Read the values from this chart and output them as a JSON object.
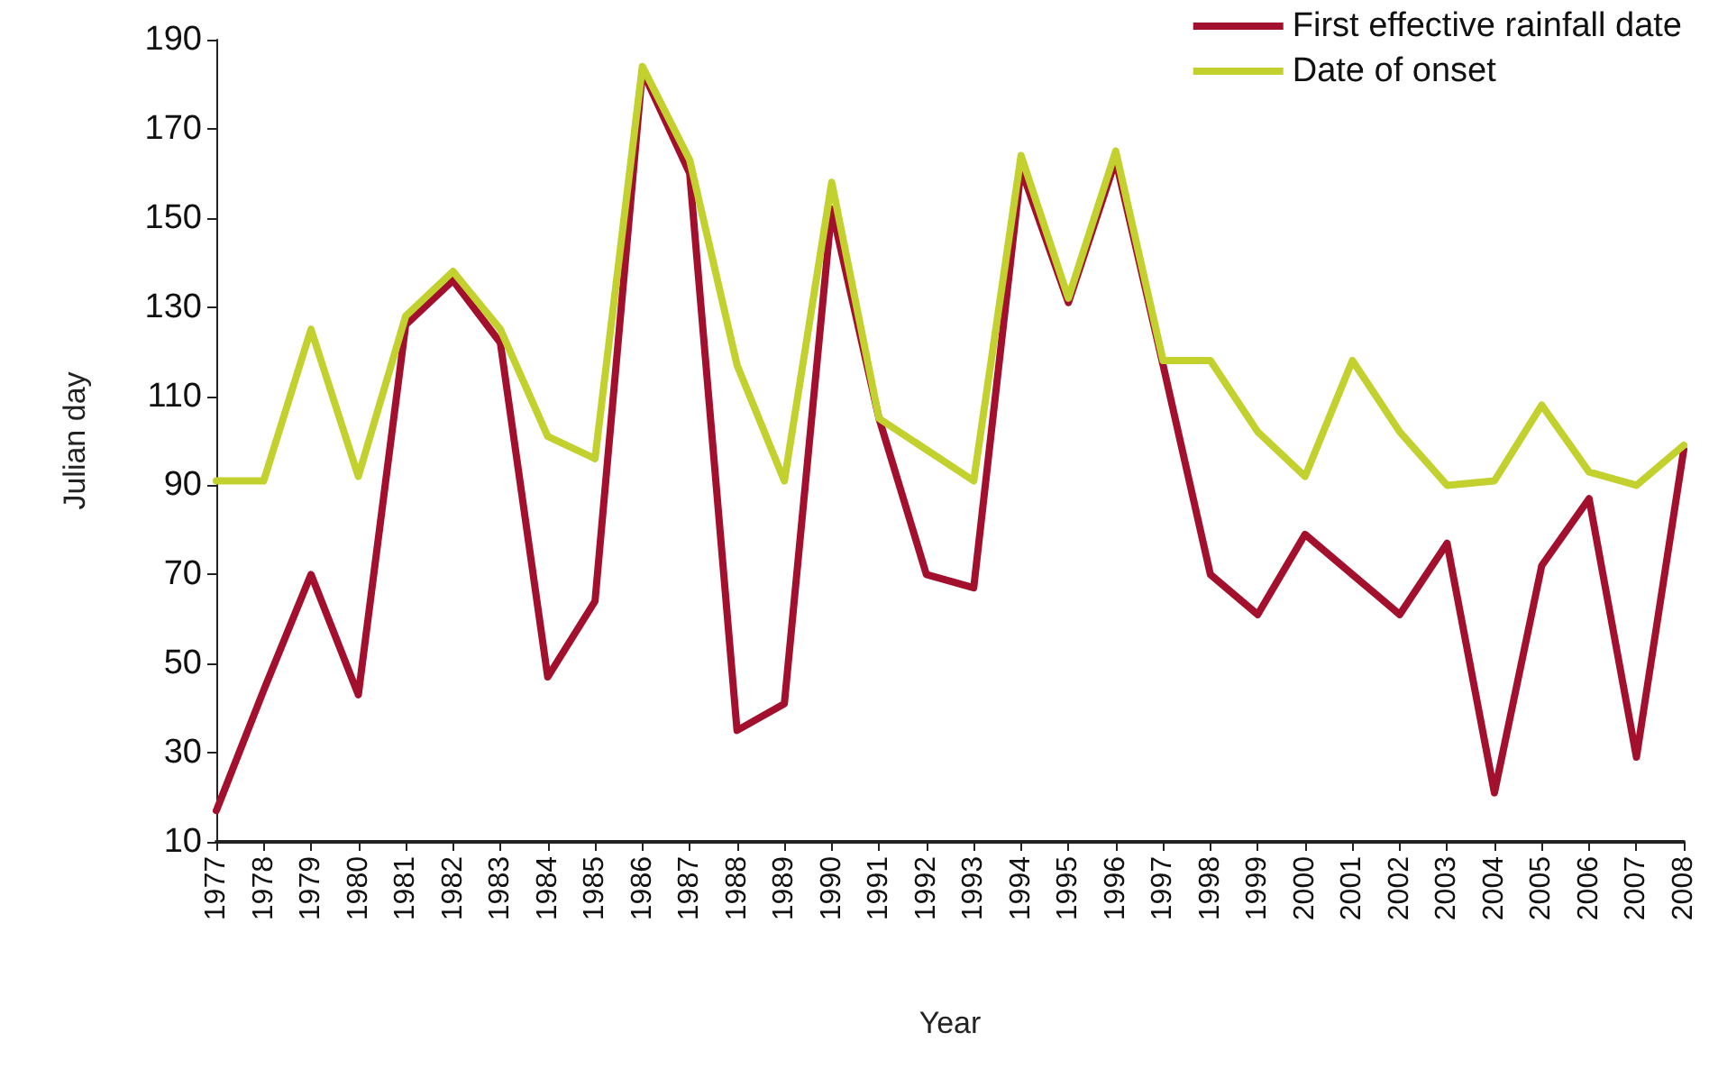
{
  "chart_data": {
    "type": "line",
    "xlabel": "Year",
    "ylabel": "Julian day",
    "categories": [
      "1977",
      "1978",
      "1979",
      "1980",
      "1981",
      "1982",
      "1983",
      "1984",
      "1985",
      "1986",
      "1987",
      "1988",
      "1989",
      "1990",
      "1991",
      "1992",
      "1993",
      "1994",
      "1995",
      "1996",
      "1997",
      "1998",
      "1999",
      "2000",
      "2001",
      "2002",
      "2003",
      "2004",
      "2005",
      "2006",
      "2007",
      "2008"
    ],
    "series": [
      {
        "name": "First effective rainfall date",
        "color": "#a3102e",
        "values": [
          17,
          44,
          70,
          43,
          126,
          136,
          122,
          47,
          64,
          183,
          160,
          35,
          41,
          152,
          105,
          70,
          67,
          161,
          131,
          163,
          117,
          70,
          61,
          79,
          70,
          61,
          77,
          21,
          72,
          87,
          29,
          98
        ]
      },
      {
        "name": "Date of onset",
        "color": "#c2d12e",
        "values": [
          91,
          91,
          125,
          92,
          128,
          138,
          125,
          101,
          96,
          184,
          163,
          117,
          91,
          158,
          105,
          98,
          91,
          164,
          132,
          165,
          118,
          118,
          102,
          92,
          118,
          102,
          90,
          91,
          108,
          93,
          90,
          99
        ]
      }
    ],
    "ylim": [
      10,
      190
    ],
    "yticks": [
      10,
      30,
      50,
      70,
      90,
      110,
      130,
      150,
      170,
      190
    ],
    "grid": false,
    "legend": "top right",
    "marker": "none",
    "line_style": "solid"
  }
}
